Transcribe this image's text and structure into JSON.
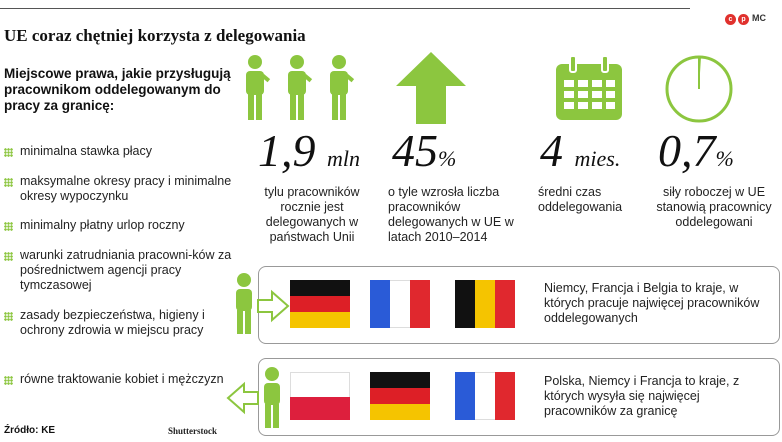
{
  "brand": {
    "logo_letter_1": "c",
    "logo_letter_2": "p",
    "mark": "MC"
  },
  "title": "UE coraz chętniej korzysta z delegowania",
  "rights_heading": "Miejscowe prawa, jakie przysługują pracownikom oddelegowanym do pracy za granicę:",
  "rights": [
    {
      "text": "minimalna stawka płacy"
    },
    {
      "text": "maksymalne okresy pracy i minimalne okresy wypoczynku"
    },
    {
      "text": "minimalny płatny urlop roczny"
    },
    {
      "text": "warunki zatrudniania pracowni-ków za pośrednictwem agencji pracy tymczasowej"
    },
    {
      "text": "zasady bezpieczeństwa, higieny i ochrony zdrowia w miejscu pracy"
    },
    {
      "text": "równe traktowanie kobiet i mężczyzn"
    }
  ],
  "stats": [
    {
      "icon": "workers-icon",
      "value": "1,9",
      "unit": "mln",
      "description": "tylu pracowników rocznie jest delegowanych w państwach Unii"
    },
    {
      "icon": "arrow-up-icon",
      "value": "45",
      "unit": "%",
      "description": "o tyle wzrosła liczba pracowników delegowanych w UE w latach 2010–2014"
    },
    {
      "icon": "calendar-icon",
      "value": "4",
      "unit": "mies.",
      "description": "średni czas oddelegowania"
    },
    {
      "icon": "pie-icon",
      "value": "0,7",
      "unit": "%",
      "pie_fraction": 0.007,
      "description": "siły roboczej w UE stanowią pracownicy oddelegowani"
    }
  ],
  "receiving": {
    "countries": [
      "Niemcy",
      "Francja",
      "Belgia"
    ],
    "text": "Niemcy, Francja i Belgia to kraje, w których pracuje najwięcej pracowników oddelegowanych"
  },
  "sending": {
    "countries": [
      "Polska",
      "Niemcy",
      "Francja"
    ],
    "text": "Polska, Niemcy i Francja to kraje, z których wysyła się najwięcej pracowników za granicę"
  },
  "colors": {
    "accent": "#8cc63f",
    "text": "#222222"
  },
  "source": "Źródło: KE",
  "credit": "Shutterstock"
}
